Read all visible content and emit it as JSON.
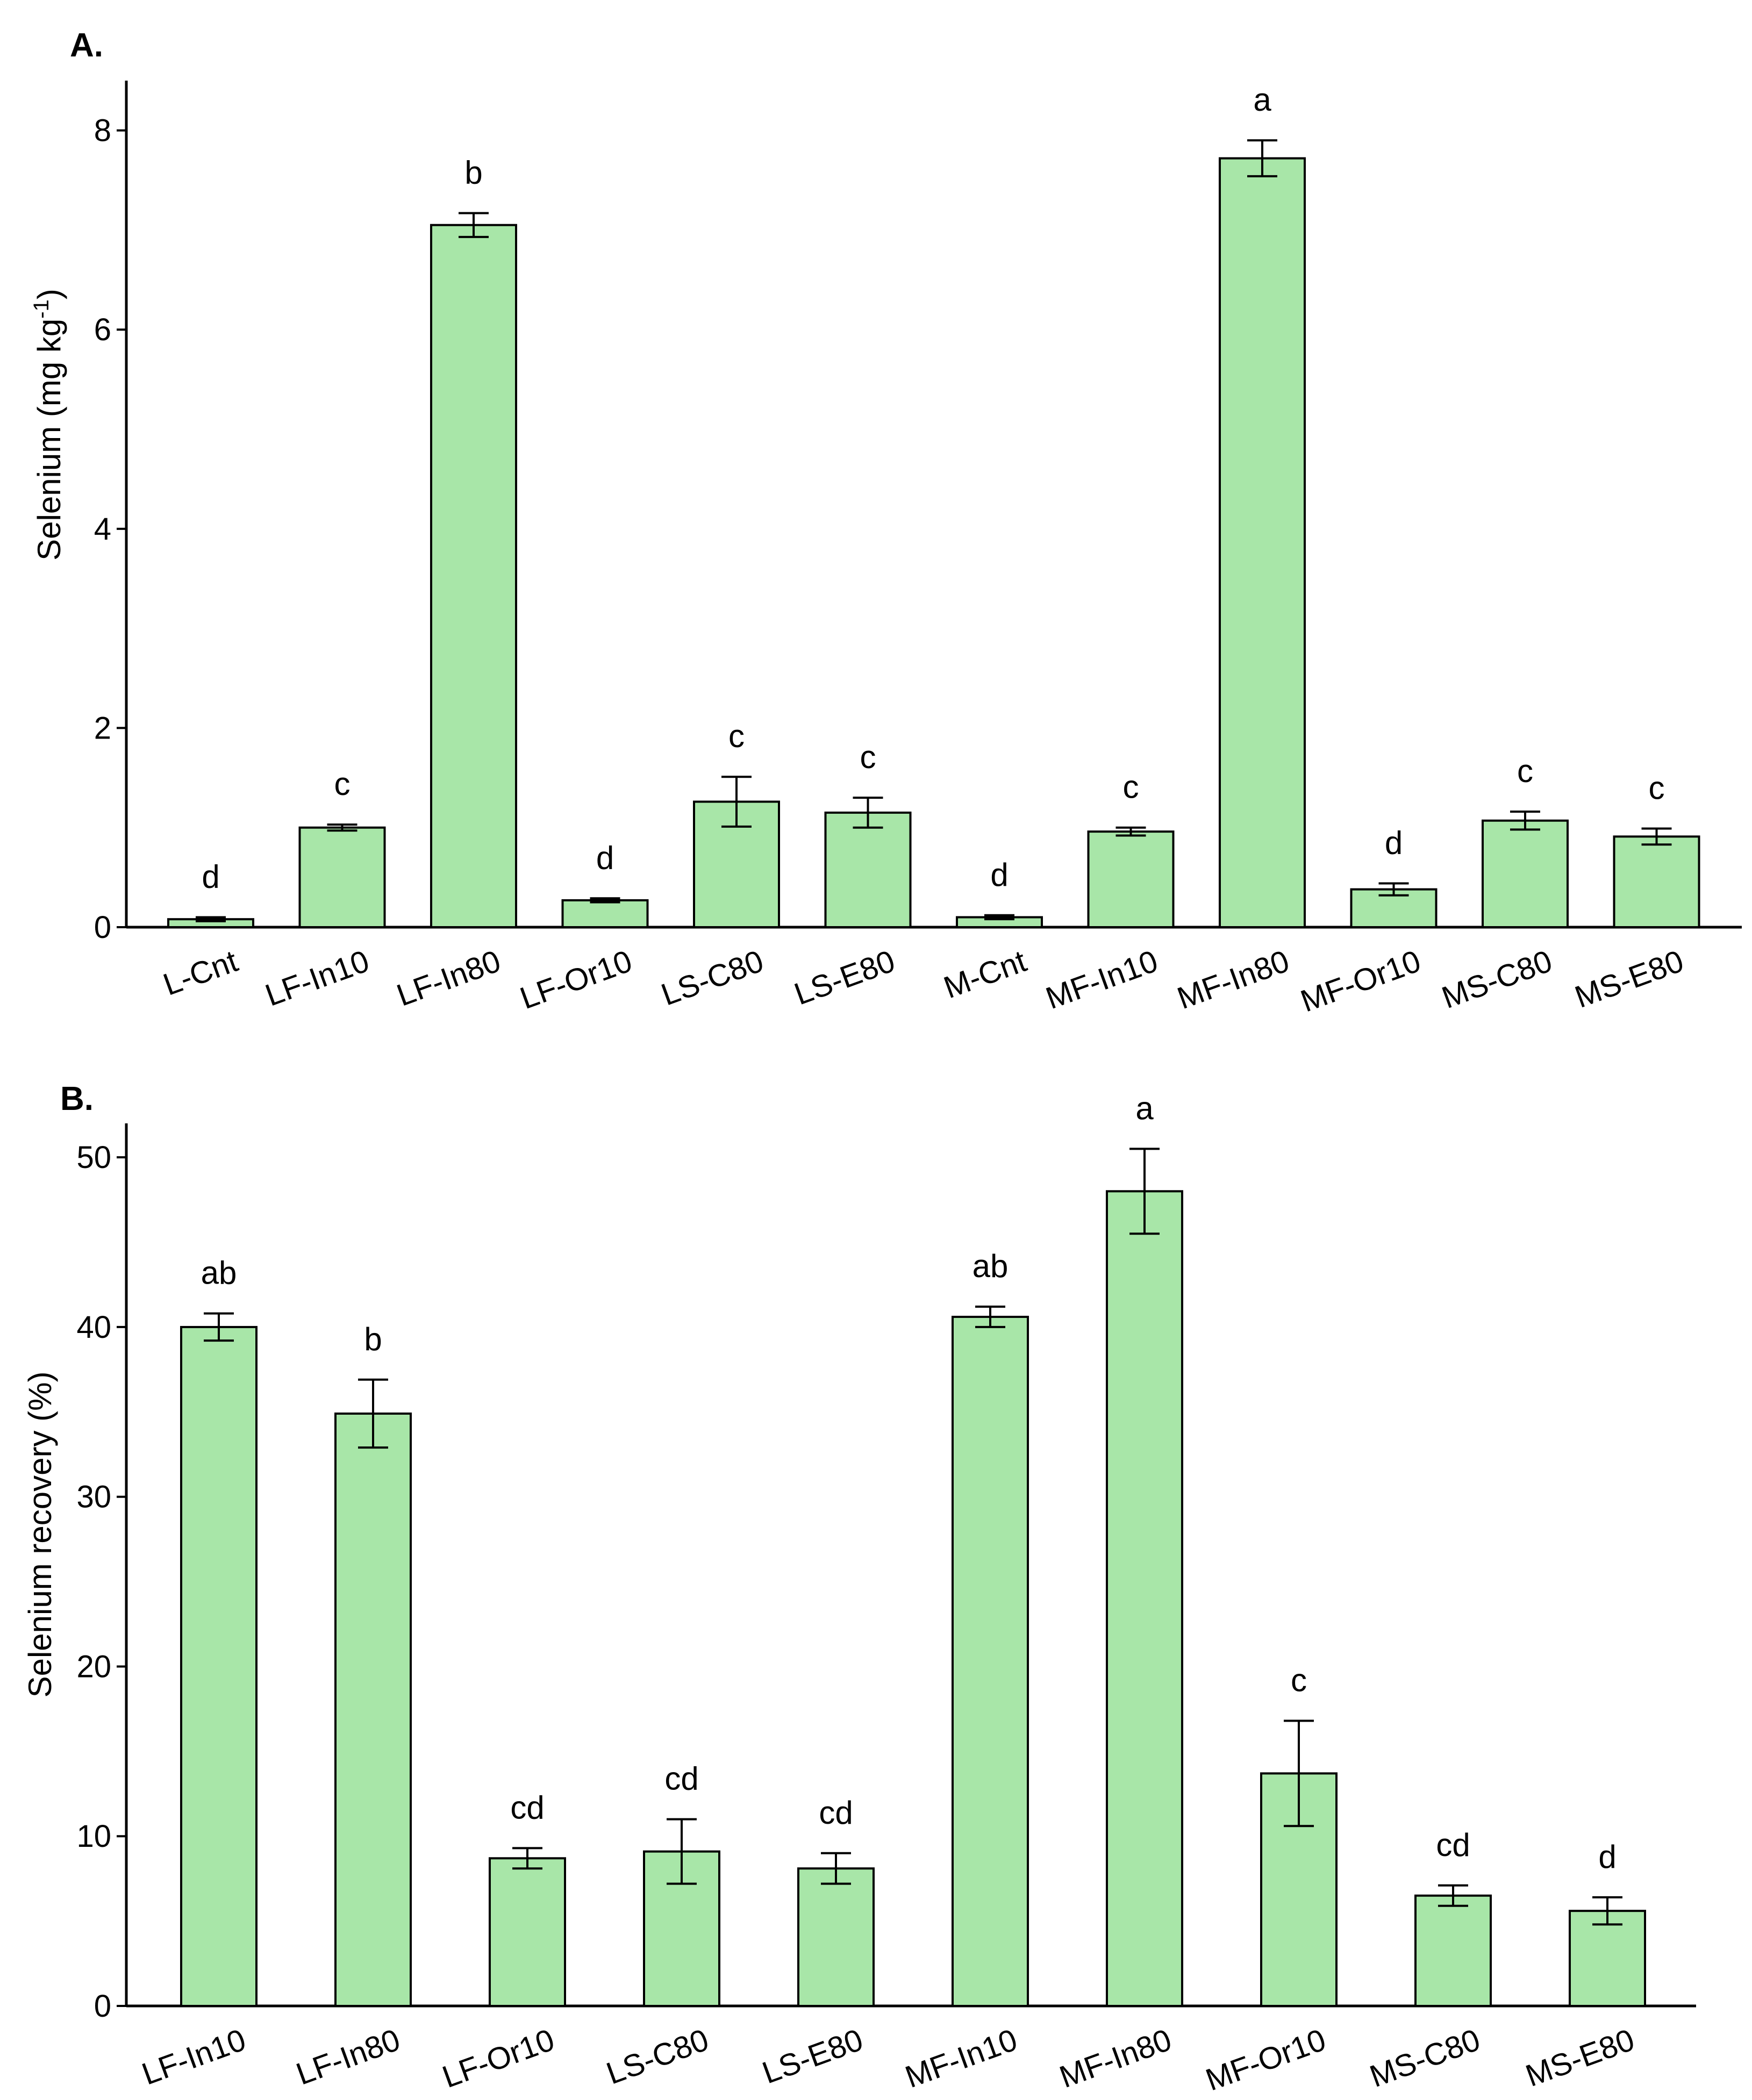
{
  "chart_data": [
    {
      "panel": "A.",
      "type": "bar",
      "ylabel": "Selenium (mg kg",
      "ylabel_sup": "-1",
      "ylabel_close": ")",
      "ylim": [
        0,
        8.5
      ],
      "yticks": [
        0,
        2,
        4,
        6,
        8
      ],
      "categories": [
        "L-Cnt",
        "LF-In10",
        "LF-In80",
        "LF-Or10",
        "LS-C80",
        "LS-E80",
        "M-Cnt",
        "MF-In10",
        "MF-In80",
        "MF-Or10",
        "MS-C80",
        "MS-E80"
      ],
      "values": [
        0.08,
        1.0,
        7.05,
        0.27,
        1.26,
        1.15,
        0.1,
        0.96,
        7.72,
        0.38,
        1.07,
        0.91
      ],
      "errors": [
        0.02,
        0.03,
        0.12,
        0.02,
        0.25,
        0.15,
        0.02,
        0.04,
        0.18,
        0.06,
        0.09,
        0.08
      ],
      "letters": [
        "d",
        "c",
        "b",
        "d",
        "c",
        "c",
        "d",
        "c",
        "a",
        "d",
        "c",
        "c"
      ],
      "color": "#a8e6a8"
    },
    {
      "panel": "B.",
      "type": "bar",
      "ylabel": "Selenium recovery (%)",
      "ylim": [
        0,
        52
      ],
      "yticks": [
        0,
        10,
        20,
        30,
        40,
        50
      ],
      "categories": [
        "LF-In10",
        "LF-In80",
        "LF-Or10",
        "LS-C80",
        "LS-E80",
        "MF-In10",
        "MF-In80",
        "MF-Or10",
        "MS-C80",
        "MS-E80"
      ],
      "values": [
        40.0,
        34.9,
        8.7,
        9.1,
        8.1,
        40.6,
        48.0,
        13.7,
        6.5,
        5.6
      ],
      "errors": [
        0.8,
        2.0,
        0.6,
        1.9,
        0.9,
        0.6,
        2.5,
        3.1,
        0.6,
        0.8
      ],
      "letters": [
        "ab",
        "b",
        "cd",
        "cd",
        "cd",
        "ab",
        "a",
        "c",
        "cd",
        "d"
      ],
      "color": "#a8e6a8"
    }
  ]
}
